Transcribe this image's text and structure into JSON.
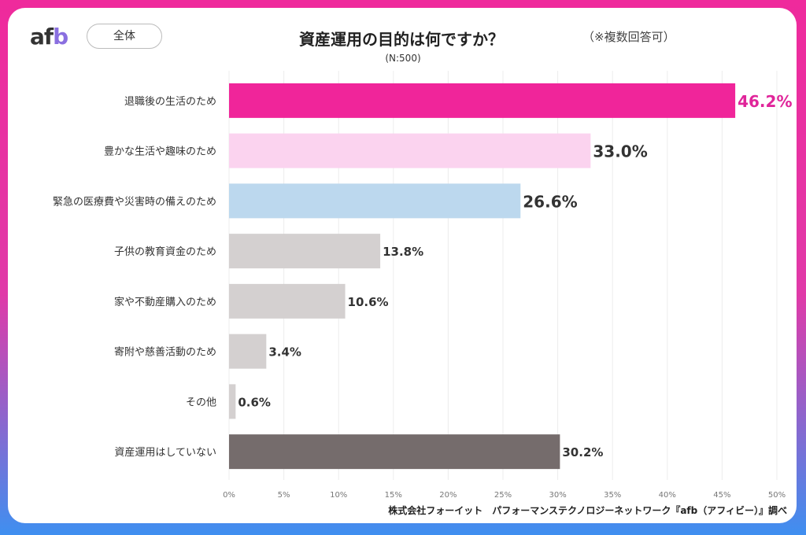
{
  "header": {
    "logo": "afb",
    "segment_button": "全体",
    "title": "資産運用の目的は何ですか？",
    "note": "（※複数回答可）",
    "sample": "(N:500)"
  },
  "footer": "株式会社フォーイット　パフォーマンステクノロジーネットワーク『afb（アフィビー）』調べ",
  "chart_data": {
    "type": "bar",
    "orientation": "horizontal",
    "title": "資産運用の目的は何ですか？",
    "categories": [
      "退職後の生活のため",
      "豊かな生活や趣味のため",
      "緊急の医療費や災害時の備えのため",
      "子供の教育資金のため",
      "家や不動産購入のため",
      "寄附や慈善活動のため",
      "その他",
      "資産運用はしていない"
    ],
    "values": [
      46.2,
      33.0,
      26.6,
      13.8,
      10.6,
      3.4,
      0.6,
      30.2
    ],
    "value_labels": [
      "46.2%",
      "33.0%",
      "26.6%",
      "13.8%",
      "10.6%",
      "3.4%",
      "0.6%",
      "30.2%"
    ],
    "colors": [
      "#f0259a",
      "#fbd3ef",
      "#bcd8ee",
      "#d4d0d0",
      "#d4d0d0",
      "#d4d0d0",
      "#d4d0d0",
      "#756c6c"
    ],
    "label_colors": [
      "#e0259a",
      "#333333",
      "#333333",
      "#333333",
      "#333333",
      "#333333",
      "#333333",
      "#333333"
    ],
    "xlim": [
      0,
      50
    ],
    "xticks": [
      "0%",
      "5%",
      "10%",
      "15%",
      "20%",
      "25%",
      "30%",
      "35%",
      "40%",
      "45%",
      "50%"
    ],
    "grid": true
  }
}
